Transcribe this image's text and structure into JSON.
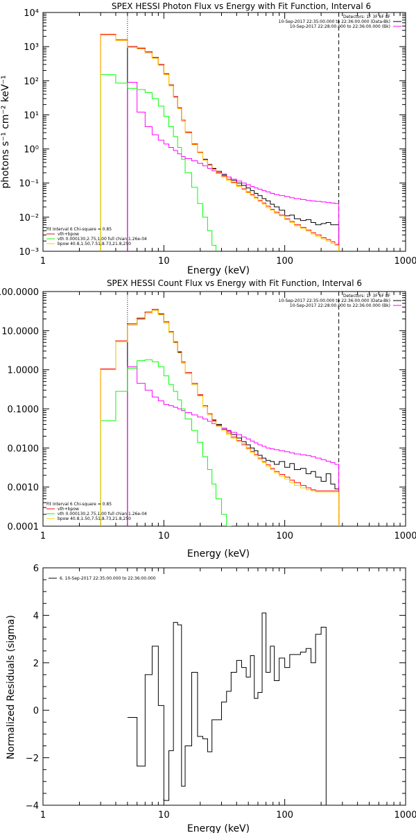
{
  "colors": {
    "data": "#000000",
    "fit": "#ff0000",
    "vth": "#00ff00",
    "bpow": "#ffcc00",
    "bkg": "#ff00ff"
  },
  "chart_data": [
    {
      "type": "line",
      "title": "SPEX HESSI Photon Flux vs Energy with Fit Function, Interval 6",
      "xlabel": "Energy (keV)",
      "ylabel": "photons s⁻¹ cm⁻² keV⁻¹",
      "xscale": "log",
      "yscale": "log",
      "xlim": [
        1,
        1000
      ],
      "ylim": [
        0.001,
        10000
      ],
      "xticks": [
        {
          "v": 1,
          "label": "1"
        },
        {
          "v": 10,
          "label": "10"
        },
        {
          "v": 100,
          "label": "100"
        },
        {
          "v": 1000,
          "label": "1000"
        }
      ],
      "yticks": [
        {
          "v": 0.001,
          "label": "10⁻³"
        },
        {
          "v": 0.01,
          "label": "10⁻²"
        },
        {
          "v": 0.1,
          "label": "10⁻¹"
        },
        {
          "v": 1,
          "label": "10⁰"
        },
        {
          "v": 10,
          "label": "10¹"
        },
        {
          "v": 100,
          "label": "10²"
        },
        {
          "v": 1000,
          "label": "10³"
        },
        {
          "v": 10000,
          "label": "10⁴"
        }
      ],
      "vlines": [
        {
          "x": 5,
          "style": "dotted"
        },
        {
          "x": 280,
          "style": "dashed"
        }
      ],
      "legend_top": [
        "Detectors: 1F 3F 6F 8F",
        "10-Sep-2017 22:35:00.000 to 22:36:00.000 (Data-Bk)",
        "10-Sep-2017 22:28:00.000 to 22:36:00.000 (Bk)"
      ],
      "legend_bottom": [
        "Fit Interval  6    Chi-square = 0.85",
        "vth+bpow",
        "vth 0.000130,2.75,1.00  full chian 1.26e-04",
        "bpow 40.8,1.50,7.51,8.73,21.8,250"
      ],
      "bin_edges": [
        3,
        4,
        5,
        6,
        7,
        8,
        9,
        10,
        11,
        12,
        13,
        14,
        15,
        17,
        19,
        21,
        23,
        25,
        27,
        30,
        33,
        36,
        40,
        44,
        48,
        52,
        56,
        60,
        65,
        70,
        76,
        82,
        90,
        100,
        110,
        120,
        135,
        150,
        165,
        180,
        200,
        220,
        240,
        260,
        280
      ],
      "series": [
        {
          "name": "(Data-Bk)",
          "color": "#000000",
          "x0": 5,
          "values": [
            1000,
            900,
            700,
            480,
            300,
            160,
            75,
            34,
            16,
            7,
            3.1,
            1.4,
            0.8,
            0.5,
            0.35,
            0.27,
            0.22,
            0.18,
            0.15,
            0.12,
            0.1,
            0.085,
            0.072,
            0.06,
            0.05,
            0.043,
            0.035,
            0.03,
            0.024,
            0.02,
            0.016,
            0.011,
            0.0115,
            0.009,
            0.008,
            0.0085,
            0.007,
            0.006,
            0.0065,
            0.007,
            0.006,
            0.006
          ]
        },
        {
          "name": "(Bk)",
          "color": "#ff00ff",
          "x0": 5,
          "values": [
            90,
            12,
            4.5,
            2.6,
            1.8,
            1.4,
            1.1,
            0.9,
            0.72,
            0.6,
            0.52,
            0.45,
            0.38,
            0.32,
            0.27,
            0.23,
            0.2,
            0.17,
            0.15,
            0.13,
            0.115,
            0.1,
            0.09,
            0.08,
            0.072,
            0.066,
            0.06,
            0.055,
            0.05,
            0.046,
            0.043,
            0.04,
            0.037,
            0.035,
            0.033,
            0.031,
            0.03,
            0.029,
            0.028,
            0.027,
            0.026,
            0.025
          ]
        },
        {
          "name": "vth+bpow",
          "color": "#ff0000",
          "x0": 3,
          "values": [
            2300,
            1600,
            1000,
            900,
            700,
            480,
            300,
            160,
            75,
            34,
            16,
            7,
            3.1,
            1.4,
            0.8,
            0.48,
            0.34,
            0.26,
            0.2,
            0.16,
            0.13,
            0.105,
            0.085,
            0.068,
            0.055,
            0.046,
            0.038,
            0.031,
            0.026,
            0.021,
            0.017,
            0.014,
            0.0115,
            0.009,
            0.0075,
            0.006,
            0.005,
            0.0042,
            0.0035,
            0.003,
            0.0025,
            0.0022,
            0.0019,
            0.0016
          ]
        },
        {
          "name": "vth",
          "color": "#00ff00",
          "x0": 3,
          "values": [
            150,
            85,
            60,
            55,
            45,
            30,
            18,
            9,
            4.5,
            2.3,
            1.1,
            0.5,
            0.2,
            0.075,
            0.025,
            0.01,
            0.004,
            0.0015,
            0.0008
          ]
        },
        {
          "name": "bpow",
          "color": "#ffcc00",
          "x0": 3,
          "values": [
            2150,
            1500,
            950,
            850,
            650,
            450,
            280,
            150,
            70,
            32,
            15,
            6.5,
            2.9,
            1.33,
            0.77,
            0.47,
            0.33,
            0.25,
            0.19,
            0.15,
            0.12,
            0.1,
            0.08,
            0.064,
            0.052,
            0.043,
            0.035,
            0.029,
            0.024,
            0.019,
            0.016,
            0.013,
            0.011,
            0.0085,
            0.007,
            0.0056,
            0.0047,
            0.0039,
            0.0032,
            0.0027,
            0.0023,
            0.002,
            0.0017,
            0.0015
          ]
        }
      ]
    },
    {
      "type": "line",
      "title": "SPEX HESSI Count Flux vs Energy with Fit Function, Interval 6",
      "xlabel": "Energy (keV)",
      "ylabel": "",
      "xscale": "log",
      "yscale": "log",
      "xlim": [
        1,
        1000
      ],
      "ylim": [
        0.0001,
        100
      ],
      "xticks": [
        {
          "v": 1,
          "label": "1"
        },
        {
          "v": 10,
          "label": "10"
        },
        {
          "v": 100,
          "label": "100"
        },
        {
          "v": 1000,
          "label": "1000"
        }
      ],
      "yticks": [
        {
          "v": 0.0001,
          "label": "0.0001"
        },
        {
          "v": 0.001,
          "label": "0.0010"
        },
        {
          "v": 0.01,
          "label": "0.0100"
        },
        {
          "v": 0.1,
          "label": "0.1000"
        },
        {
          "v": 1,
          "label": "1.0000"
        },
        {
          "v": 10,
          "label": "10.0000"
        },
        {
          "v": 100,
          "label": "100.0000"
        }
      ],
      "vlines": [
        {
          "x": 5,
          "style": "dotted"
        },
        {
          "x": 280,
          "style": "dashed"
        }
      ],
      "legend_top": [
        "Detectors: 1F 3F 6F 8F",
        "10-Sep-2017 22:35:00.000 to 22:36:00.000 (Data-Bk)",
        "10-Sep-2017 22:28:00.000 to 22:36:00.000 (Bk)"
      ],
      "legend_bottom": [
        "Fit Interval  6    Chi-square = 0.85",
        "vth+bpow",
        "vth 0.000130,2.75,1.00  full chian 1.26e-04",
        "bpow 40.8,1.50,7.51,8.73,21.8,250"
      ],
      "bin_edges": [
        3,
        4,
        5,
        6,
        7,
        8,
        9,
        10,
        11,
        12,
        13,
        14,
        15,
        17,
        19,
        21,
        23,
        25,
        27,
        30,
        33,
        36,
        40,
        44,
        48,
        52,
        56,
        60,
        65,
        70,
        76,
        82,
        90,
        100,
        110,
        120,
        135,
        150,
        165,
        180,
        200,
        220,
        240,
        260,
        280
      ],
      "series": [
        {
          "name": "(Data-Bk)",
          "color": "#000000",
          "x0": 5,
          "values": [
            14,
            20,
            30,
            33,
            26,
            16,
            9,
            5,
            2.8,
            1.5,
            0.8,
            0.42,
            0.22,
            0.12,
            0.075,
            0.052,
            0.04,
            0.032,
            0.027,
            0.022,
            0.018,
            0.0145,
            0.012,
            0.01,
            0.0085,
            0.0065,
            0.0055,
            0.0048,
            0.0045,
            0.0038,
            0.0045,
            0.0032,
            0.004,
            0.0028,
            0.003,
            0.0022,
            0.0025,
            0.0018,
            0.0014,
            0.0022,
            0.0012,
            0.0009,
            0.0012,
            0.0008
          ]
        },
        {
          "name": "(Bk)",
          "color": "#ff00ff",
          "x0": 5,
          "values": [
            1.2,
            0.45,
            0.3,
            0.2,
            0.16,
            0.13,
            0.12,
            0.11,
            0.1,
            0.09,
            0.08,
            0.07,
            0.062,
            0.055,
            0.048,
            0.042,
            0.037,
            0.032,
            0.028,
            0.025,
            0.022,
            0.019,
            0.017,
            0.015,
            0.0135,
            0.012,
            0.011,
            0.01,
            0.0095,
            0.009,
            0.0085,
            0.008,
            0.0075,
            0.007,
            0.0067,
            0.0064,
            0.006,
            0.0055,
            0.005,
            0.0046,
            0.0042,
            0.0038,
            0.0034,
            0.003
          ]
        },
        {
          "name": "vth+bpow",
          "color": "#ff0000",
          "x0": 3,
          "values": [
            1.05,
            5.5,
            15,
            21,
            30,
            35,
            27,
            17,
            9.5,
            5.2,
            2.9,
            1.6,
            0.85,
            0.45,
            0.23,
            0.12,
            0.075,
            0.05,
            0.038,
            0.03,
            0.024,
            0.019,
            0.0155,
            0.0125,
            0.01,
            0.0082,
            0.0068,
            0.0055,
            0.0045,
            0.0037,
            0.003,
            0.0025,
            0.0021,
            0.0018,
            0.0015,
            0.0013,
            0.0011,
            0.00095,
            0.00085,
            0.0008,
            0.0008,
            0.0008,
            0.0008,
            0.0008
          ]
        },
        {
          "name": "vth",
          "color": "#00ff00",
          "x0": 3,
          "values": [
            0.05,
            0.28,
            1.1,
            1.7,
            1.8,
            1.6,
            1.2,
            0.7,
            0.42,
            0.28,
            0.17,
            0.1,
            0.055,
            0.028,
            0.014,
            0.006,
            0.0028,
            0.0012,
            0.0005,
            0.0002,
            0.0001
          ]
        },
        {
          "name": "bpow",
          "color": "#ffcc00",
          "x0": 3,
          "values": [
            1.0,
            5.2,
            14,
            19.5,
            28,
            33,
            25.5,
            16,
            9,
            4.9,
            2.7,
            1.5,
            0.8,
            0.42,
            0.215,
            0.112,
            0.07,
            0.047,
            0.036,
            0.028,
            0.022,
            0.0178,
            0.0145,
            0.0117,
            0.0094,
            0.0077,
            0.0063,
            0.0051,
            0.0042,
            0.0034,
            0.0028,
            0.0023,
            0.0019,
            0.0016,
            0.0013,
            0.0011,
            0.00095,
            0.00085,
            0.0008,
            0.00075,
            0.00075,
            0.00075,
            0.00075,
            0.00075
          ]
        }
      ]
    },
    {
      "type": "line",
      "title": "",
      "xlabel": "Energy (keV)",
      "ylabel": "Normalized Residuals (sigma)",
      "xscale": "log",
      "yscale": "linear",
      "xlim": [
        1,
        1000
      ],
      "ylim": [
        -4,
        6
      ],
      "xticks": [
        {
          "v": 1,
          "label": "1"
        },
        {
          "v": 10,
          "label": "10"
        },
        {
          "v": 100,
          "label": "100"
        },
        {
          "v": 1000,
          "label": "1000"
        }
      ],
      "yticks": [
        {
          "v": -4,
          "label": "−4"
        },
        {
          "v": -2,
          "label": "−2"
        },
        {
          "v": 0,
          "label": "0"
        },
        {
          "v": 2,
          "label": "2"
        },
        {
          "v": 4,
          "label": "4"
        },
        {
          "v": 6,
          "label": "6"
        }
      ],
      "legend_top": [
        "6. 10-Sep-2017 22:35:00.000 to 22:36:00.000"
      ],
      "bin_edges": [
        5,
        6,
        7,
        8,
        9,
        10,
        11,
        12,
        13,
        14,
        15,
        17,
        19,
        21,
        23,
        25,
        27,
        30,
        33,
        36,
        40,
        44,
        48,
        52,
        56,
        60,
        65,
        70,
        76,
        82,
        90,
        100,
        110,
        120,
        135,
        150,
        165,
        180,
        200,
        220,
        240,
        260,
        280
      ],
      "series": [
        {
          "name": "6. 10-Sep-2017 22:35:00.000 to 22:36:00.000",
          "color": "#000000",
          "x0": 5,
          "values": [
            -0.3,
            -2.35,
            1.5,
            2.7,
            0.2,
            -3.8,
            -1.7,
            3.7,
            3.6,
            -3.2,
            -1.5,
            1.6,
            -1.1,
            -1.2,
            -1.75,
            -0.4,
            -0.4,
            0.35,
            0.8,
            1.6,
            2.1,
            1.8,
            1.4,
            2.3,
            0.5,
            0.75,
            4.1,
            1.6,
            2.7,
            1.25,
            2.2,
            1.8,
            2.35,
            2.35,
            2.45,
            2.6,
            2.0,
            3.2,
            3.5
          ]
        }
      ]
    }
  ]
}
